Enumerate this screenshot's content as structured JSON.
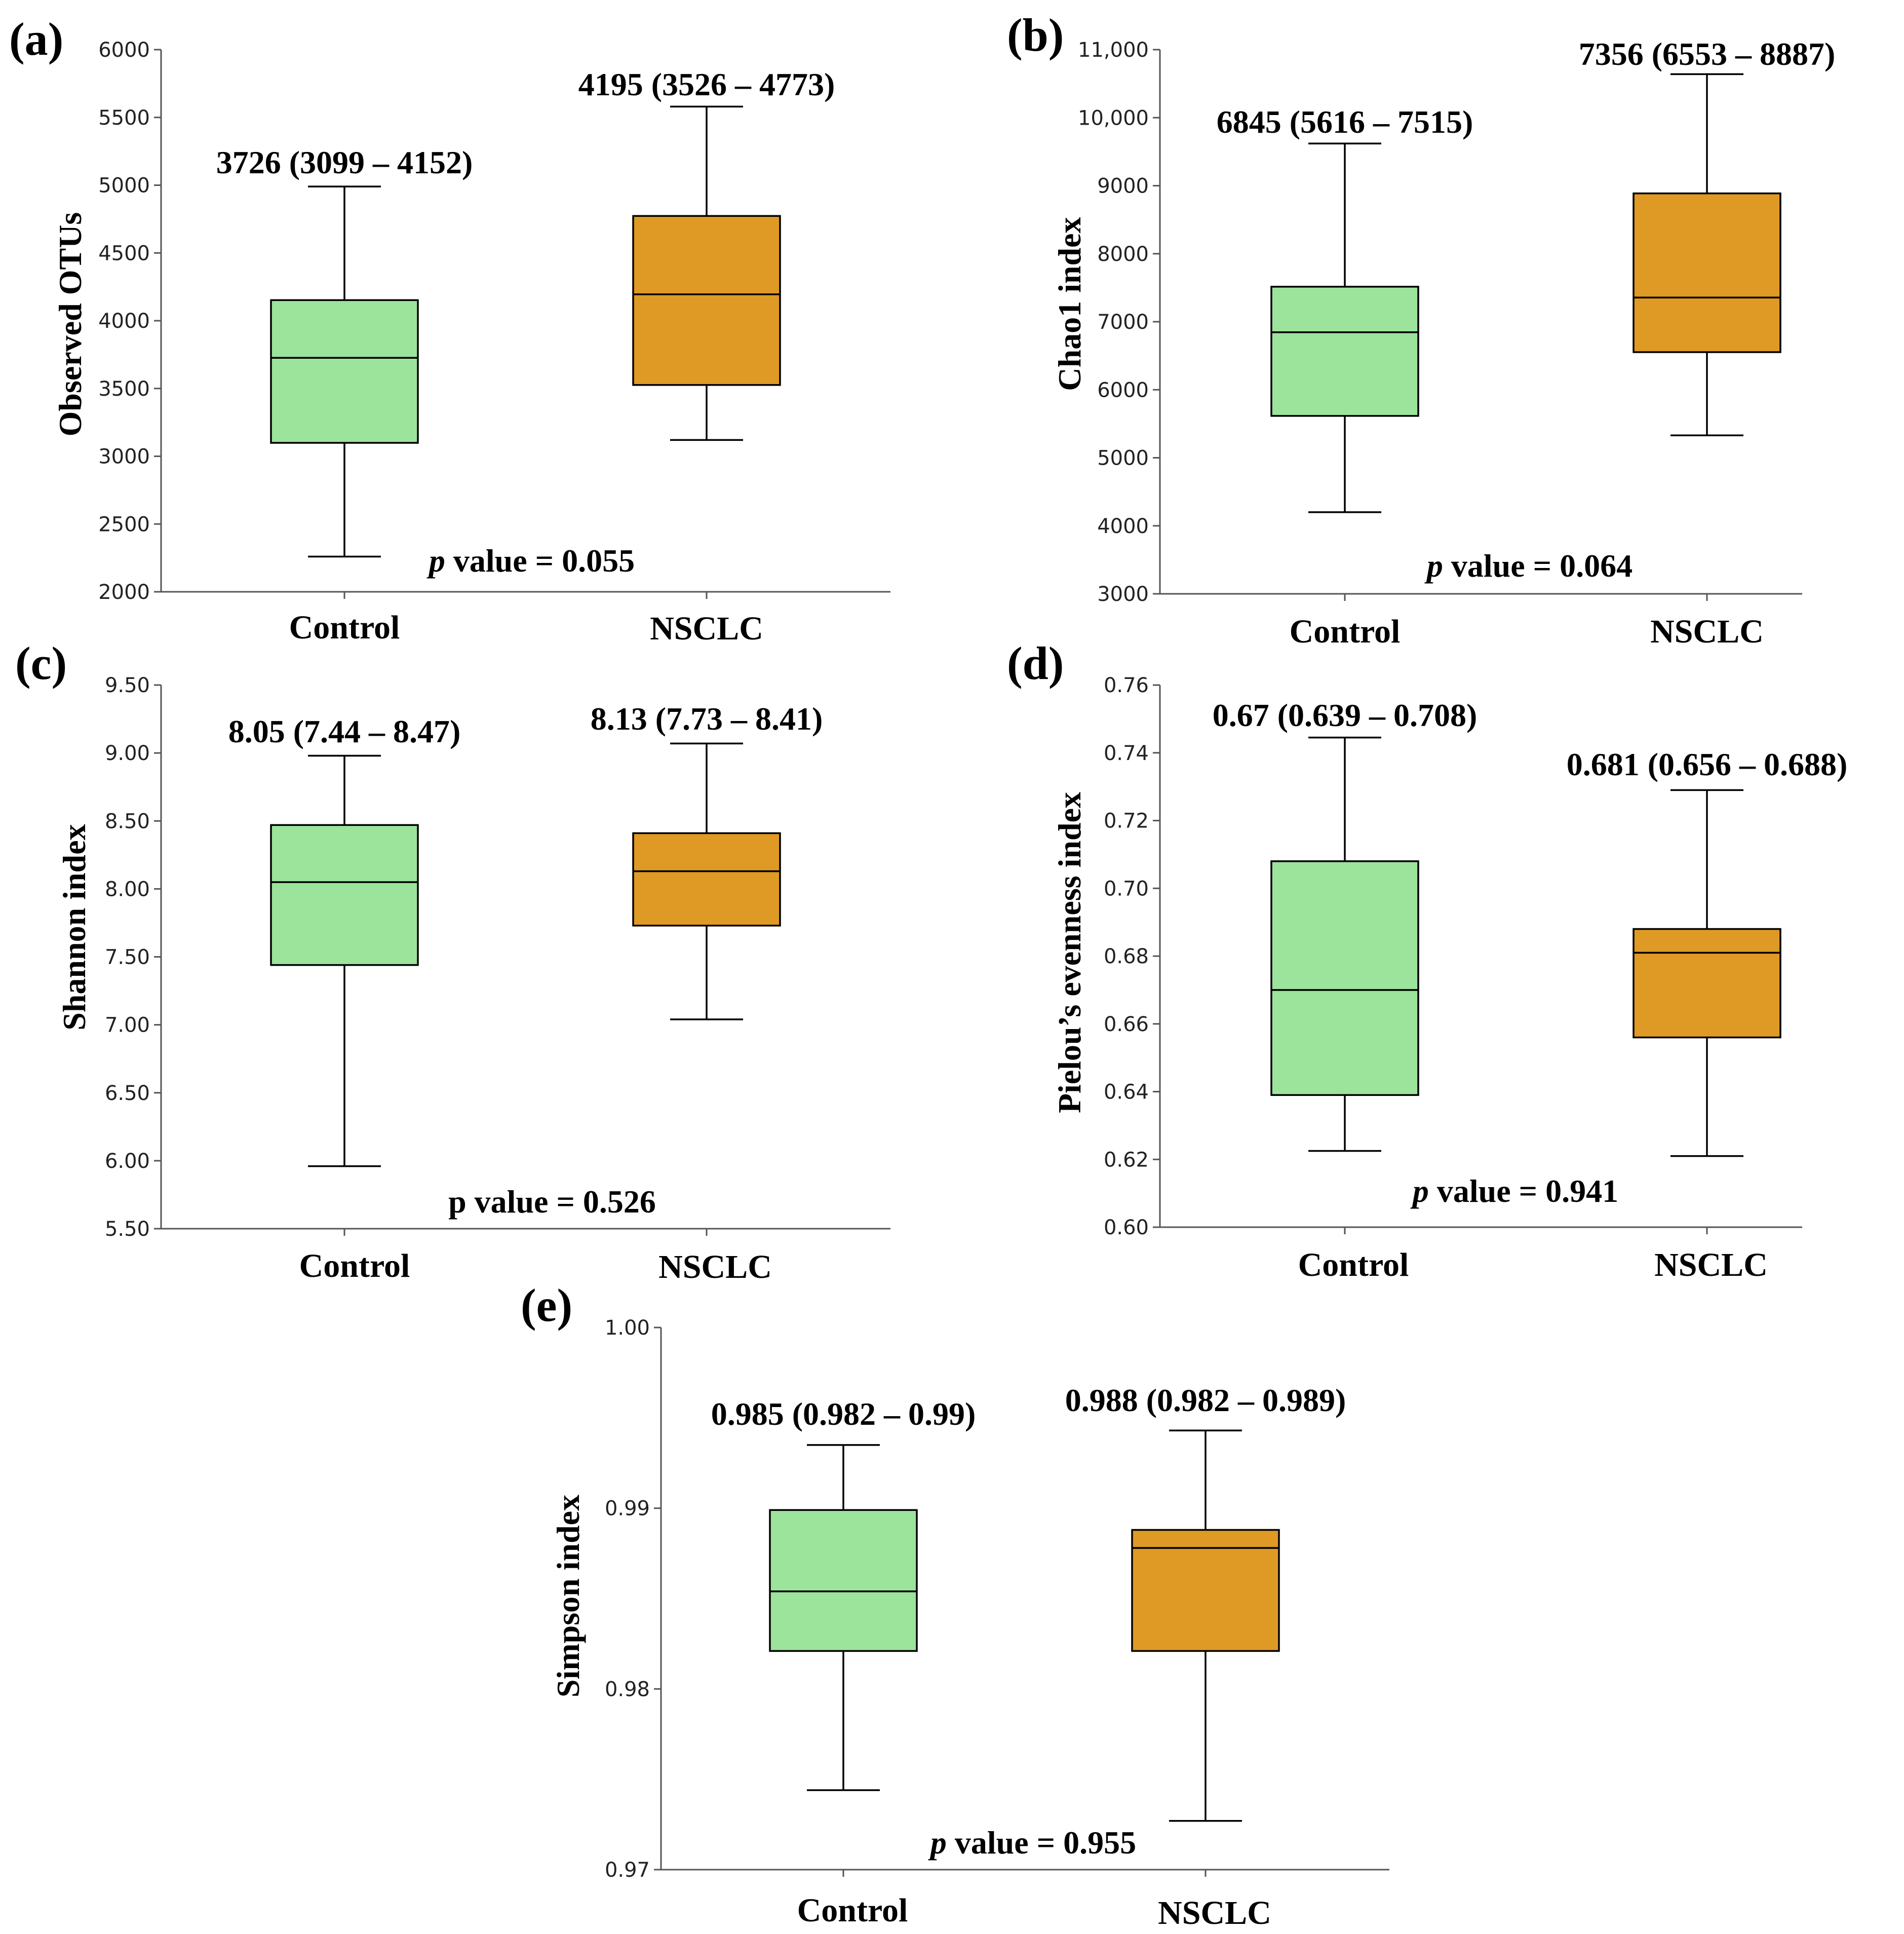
{
  "figure": {
    "colors": {
      "control": "#9ce39c",
      "nsclc": "#de9a24"
    }
  },
  "chart_data": [
    {
      "type": "box",
      "panel": "(a)",
      "ylabel": "Observed OTUs",
      "ylim": [
        2000,
        6000
      ],
      "yticks": [
        2000,
        2500,
        3000,
        3500,
        4000,
        4500,
        5000,
        5500,
        6000
      ],
      "ytick_labels": [
        "2000",
        "2500",
        "3000",
        "3500",
        "4000",
        "4500",
        "5000",
        "5500",
        "6000"
      ],
      "categories": [
        "Control",
        "NSCLC"
      ],
      "boxes": [
        {
          "name": "Control",
          "whisker_low": 2260,
          "q1": 3099,
          "median": 3726,
          "q3": 4152,
          "whisker_high": 4990,
          "annotation": "3726 (3099 – 4152)"
        },
        {
          "name": "NSCLC",
          "whisker_low": 3120,
          "q1": 3526,
          "median": 4195,
          "q3": 4773,
          "whisker_high": 5580,
          "annotation": "4195 (3526 – 4773)"
        }
      ],
      "pvalue": {
        "p": "p",
        "rest": " value = 0.055"
      }
    },
    {
      "type": "box",
      "panel": "(b)",
      "ylabel": "Chao1 index",
      "ylim": [
        3000,
        11000
      ],
      "yticks": [
        3000,
        4000,
        5000,
        6000,
        7000,
        8000,
        9000,
        10000,
        11000
      ],
      "ytick_labels": [
        "3000",
        "4000",
        "5000",
        "6000",
        "7000",
        "8000",
        "9000",
        "10,000",
        "11,000"
      ],
      "categories": [
        "Control",
        "NSCLC"
      ],
      "boxes": [
        {
          "name": "Control",
          "whisker_low": 4200,
          "q1": 5616,
          "median": 6845,
          "q3": 7515,
          "whisker_high": 9620,
          "annotation": "6845 (5616 – 7515)"
        },
        {
          "name": "NSCLC",
          "whisker_low": 5330,
          "q1": 6553,
          "median": 7356,
          "q3": 8887,
          "whisker_high": 10640,
          "annotation": "7356 (6553 – 8887)"
        }
      ],
      "pvalue": {
        "p": "p",
        "rest": " value = 0.064"
      }
    },
    {
      "type": "box",
      "panel": "(c)",
      "ylabel": "Shannon index",
      "ylim": [
        5.5,
        9.5
      ],
      "yticks": [
        5.5,
        6.0,
        6.5,
        7.0,
        7.5,
        8.0,
        8.5,
        9.0,
        9.5
      ],
      "ytick_labels": [
        "5.50",
        "6.00",
        "6.50",
        "7.00",
        "7.50",
        "8.00",
        "8.50",
        "9.00",
        "9.50"
      ],
      "categories": [
        "Control",
        "NSCLC"
      ],
      "boxes": [
        {
          "name": "Control",
          "whisker_low": 5.96,
          "q1": 7.44,
          "median": 8.05,
          "q3": 8.47,
          "whisker_high": 8.98,
          "annotation": "8.05 (7.44 – 8.47)"
        },
        {
          "name": "NSCLC",
          "whisker_low": 7.04,
          "q1": 7.73,
          "median": 8.13,
          "q3": 8.41,
          "whisker_high": 9.07,
          "annotation": "8.13 (7.73 – 8.41)"
        }
      ],
      "pvalue": {
        "p": "p",
        "rest": " value  = 0.526"
      }
    },
    {
      "type": "box",
      "panel": "(d)",
      "ylabel": "Pielou’s evenness index",
      "ylim": [
        0.6,
        0.76
      ],
      "yticks": [
        0.6,
        0.62,
        0.64,
        0.66,
        0.68,
        0.7,
        0.72,
        0.74,
        0.76
      ],
      "ytick_labels": [
        "0.60",
        "0.62",
        "0.64",
        "0.66",
        "0.68",
        "0.70",
        "0.72",
        "0.74",
        "0.76"
      ],
      "categories": [
        "Control",
        "NSCLC"
      ],
      "boxes": [
        {
          "name": "Control",
          "whisker_low": 0.6225,
          "q1": 0.639,
          "median": 0.67,
          "q3": 0.708,
          "whisker_high": 0.7445,
          "annotation": "0.67 (0.639 – 0.708)"
        },
        {
          "name": "NSCLC",
          "whisker_low": 0.621,
          "q1": 0.656,
          "median": 0.681,
          "q3": 0.688,
          "whisker_high": 0.729,
          "annotation": "0.681 (0.656 – 0.688)"
        }
      ],
      "pvalue": {
        "p": "p",
        "rest": " value = 0.941"
      }
    },
    {
      "type": "box",
      "panel": "(e)",
      "ylabel": "Simpson index",
      "ylim": [
        0.97,
        1.0
      ],
      "yticks": [
        0.97,
        0.98,
        0.99,
        1.0
      ],
      "ytick_labels": [
        "0.97",
        "0.98",
        "0.99",
        "1.00"
      ],
      "categories": [
        "Control",
        "NSCLC"
      ],
      "boxes": [
        {
          "name": "Control",
          "whisker_low": 0.9744,
          "q1": 0.9821,
          "median": 0.9854,
          "q3": 0.9899,
          "whisker_high": 0.9935,
          "annotation": "0.985 (0.982 – 0.99)"
        },
        {
          "name": "NSCLC",
          "whisker_low": 0.9727,
          "q1": 0.9821,
          "median": 0.9878,
          "q3": 0.9888,
          "whisker_high": 0.9943,
          "annotation": "0.988 (0.982 – 0.989)"
        }
      ],
      "pvalue": {
        "p": "p",
        "rest": " value = 0.955"
      }
    }
  ]
}
